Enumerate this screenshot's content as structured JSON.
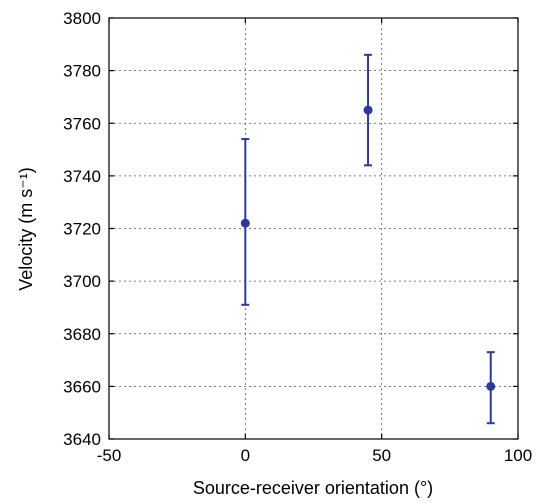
{
  "chart_data": {
    "type": "scatter",
    "title": "",
    "xlabel": "Source-receiver orientation (°)",
    "ylabel": "Velocity (m s⁻¹)",
    "xlim": [
      -50,
      100
    ],
    "ylim": [
      3640,
      3800
    ],
    "xticks": [
      "-50",
      "0",
      "50",
      "100"
    ],
    "yticks": [
      "3640",
      "3660",
      "3680",
      "3700",
      "3720",
      "3740",
      "3760",
      "3780",
      "3800"
    ],
    "grid": true,
    "series": [
      {
        "color": "#2b3a9b",
        "points": [
          {
            "x": 0,
            "y": 3722,
            "err_low": 3691,
            "err_high": 3754
          },
          {
            "x": 45,
            "y": 3765,
            "err_low": 3744,
            "err_high": 3786
          },
          {
            "x": 90,
            "y": 3660,
            "err_low": 3646,
            "err_high": 3673
          }
        ]
      }
    ]
  }
}
